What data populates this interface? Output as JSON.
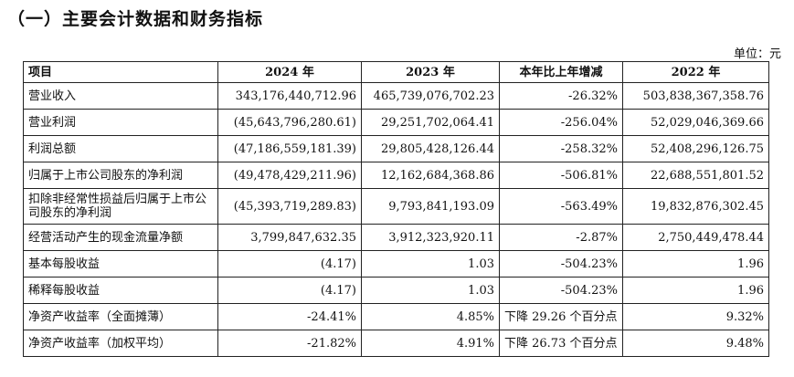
{
  "heading": "（一）主要会计数据和财务指标",
  "unit": "单位：元",
  "table": {
    "headers": [
      "项目",
      "2024 年",
      "2023 年",
      "本年比上年增减",
      "2022 年"
    ],
    "rows": [
      [
        "营业收入",
        "343,176,440,712.96",
        "465,739,076,702.23",
        "-26.32%",
        "503,838,367,358.76"
      ],
      [
        "营业利润",
        "(45,643,796,280.61)",
        "29,251,702,064.41",
        "-256.04%",
        "52,029,046,369.66"
      ],
      [
        "利润总额",
        "(47,186,559,181.39)",
        "29,805,428,126.44",
        "-258.32%",
        "52,408,296,126.75"
      ],
      [
        "归属于上市公司股东的净利润",
        "(49,478,429,211.96)",
        "12,162,684,368.86",
        "-506.81%",
        "22,688,551,801.52"
      ],
      [
        "扣除非经常性损益后归属于上市公司股东的净利润",
        "(45,393,719,289.83)",
        "9,793,841,193.09",
        "-563.49%",
        "19,832,876,302.45"
      ],
      [
        "经营活动产生的现金流量净额",
        "3,799,847,632.35",
        "3,912,323,920.11",
        "-2.87%",
        "2,750,449,478.44"
      ],
      [
        "基本每股收益",
        "(4.17)",
        "1.03",
        "-504.23%",
        "1.96"
      ],
      [
        "稀释每股收益",
        "(4.17)",
        "1.03",
        "-504.23%",
        "1.96"
      ],
      [
        "净资产收益率（全面摊薄）",
        "-24.41%",
        "4.85%",
        "下降 29.26 个百分点",
        "9.32%"
      ],
      [
        "净资产收益率（加权平均）",
        "-21.82%",
        "4.91%",
        "下降 26.73 个百分点",
        "9.48%"
      ]
    ]
  }
}
